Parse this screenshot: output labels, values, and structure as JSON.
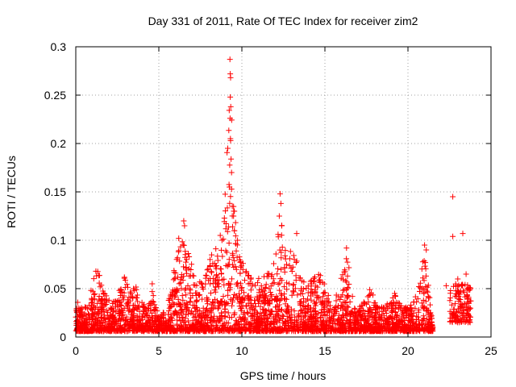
{
  "chart_data": {
    "type": "scatter",
    "title": "Day 331 of 2011, Rate Of TEC Index for receiver zim2",
    "xlabel": "GPS time / hours",
    "ylabel": "ROTI / TECUs",
    "xlim": [
      0,
      25
    ],
    "ylim": [
      0,
      0.3
    ],
    "xticks": [
      "0",
      "5",
      "10",
      "15",
      "20",
      "25"
    ],
    "yticks": [
      "0",
      "0.05",
      "0.1",
      "0.15",
      "0.2",
      "0.25",
      "0.3"
    ],
    "grid": true,
    "marker": "plus",
    "color": "#ff0000",
    "envelope": [
      [
        0.0,
        0.04
      ],
      [
        0.3,
        0.03
      ],
      [
        0.7,
        0.032
      ],
      [
        1.0,
        0.055
      ],
      [
        1.3,
        0.075
      ],
      [
        1.6,
        0.05
      ],
      [
        2.0,
        0.038
      ],
      [
        2.5,
        0.045
      ],
      [
        2.9,
        0.065
      ],
      [
        3.2,
        0.05
      ],
      [
        3.7,
        0.055
      ],
      [
        4.0,
        0.045
      ],
      [
        4.3,
        0.03
      ],
      [
        4.7,
        0.045
      ],
      [
        5.0,
        0.02
      ],
      [
        5.5,
        0.03
      ],
      [
        6.0,
        0.08
      ],
      [
        6.3,
        0.1
      ],
      [
        6.6,
        0.115
      ],
      [
        6.9,
        0.08
      ],
      [
        7.3,
        0.06
      ],
      [
        7.7,
        0.055
      ],
      [
        8.0,
        0.08
      ],
      [
        8.4,
        0.095
      ],
      [
        8.8,
        0.1
      ],
      [
        9.0,
        0.15
      ],
      [
        9.2,
        0.23
      ],
      [
        9.3,
        0.285
      ],
      [
        9.5,
        0.15
      ],
      [
        9.8,
        0.09
      ],
      [
        10.2,
        0.07
      ],
      [
        10.7,
        0.06
      ],
      [
        11.0,
        0.06
      ],
      [
        11.3,
        0.075
      ],
      [
        11.6,
        0.065
      ],
      [
        12.0,
        0.08
      ],
      [
        12.3,
        0.145
      ],
      [
        12.6,
        0.09
      ],
      [
        13.0,
        0.09
      ],
      [
        13.3,
        0.08
      ],
      [
        13.8,
        0.055
      ],
      [
        14.2,
        0.06
      ],
      [
        14.6,
        0.07
      ],
      [
        15.0,
        0.055
      ],
      [
        15.5,
        0.03
      ],
      [
        16.0,
        0.065
      ],
      [
        16.3,
        0.09
      ],
      [
        16.8,
        0.03
      ],
      [
        17.3,
        0.035
      ],
      [
        17.8,
        0.048
      ],
      [
        18.3,
        0.03
      ],
      [
        18.8,
        0.035
      ],
      [
        19.3,
        0.045
      ],
      [
        19.8,
        0.03
      ],
      [
        20.3,
        0.035
      ],
      [
        20.7,
        0.06
      ],
      [
        21.0,
        0.09
      ],
      [
        21.3,
        0.05
      ],
      [
        21.5,
        0.01
      ]
    ],
    "points": [
      [
        9.28,
        0.287
      ],
      [
        9.3,
        0.272
      ],
      [
        9.32,
        0.268
      ],
      [
        9.3,
        0.248
      ],
      [
        9.33,
        0.238
      ],
      [
        9.29,
        0.226
      ],
      [
        9.31,
        0.205
      ],
      [
        9.35,
        0.184
      ],
      [
        9.38,
        0.17
      ],
      [
        9.25,
        0.155
      ],
      [
        9.42,
        0.135
      ],
      [
        9.5,
        0.125
      ],
      [
        9.55,
        0.11
      ],
      [
        12.3,
        0.148
      ],
      [
        12.35,
        0.138
      ],
      [
        12.25,
        0.125
      ],
      [
        12.4,
        0.115
      ],
      [
        6.5,
        0.12
      ],
      [
        6.55,
        0.115
      ],
      [
        6.2,
        0.102
      ],
      [
        8.7,
        0.105
      ],
      [
        8.8,
        0.1
      ],
      [
        13.3,
        0.107
      ],
      [
        16.3,
        0.092
      ],
      [
        21.0,
        0.095
      ],
      [
        21.1,
        0.09
      ],
      [
        22.7,
        0.145
      ],
      [
        22.7,
        0.104
      ],
      [
        23.3,
        0.107
      ],
      [
        22.3,
        0.053
      ],
      [
        23.5,
        0.065
      ],
      [
        23.0,
        0.06
      ],
      [
        23.6,
        0.05
      ],
      [
        17.7,
        0.049
      ],
      [
        19.2,
        0.045
      ],
      [
        4.6,
        0.055
      ],
      [
        4.6,
        0.047
      ]
    ],
    "clusters": [
      {
        "x": [
          22.5,
          23.8
        ],
        "y": [
          0.015,
          0.055
        ],
        "n": 140
      }
    ]
  }
}
